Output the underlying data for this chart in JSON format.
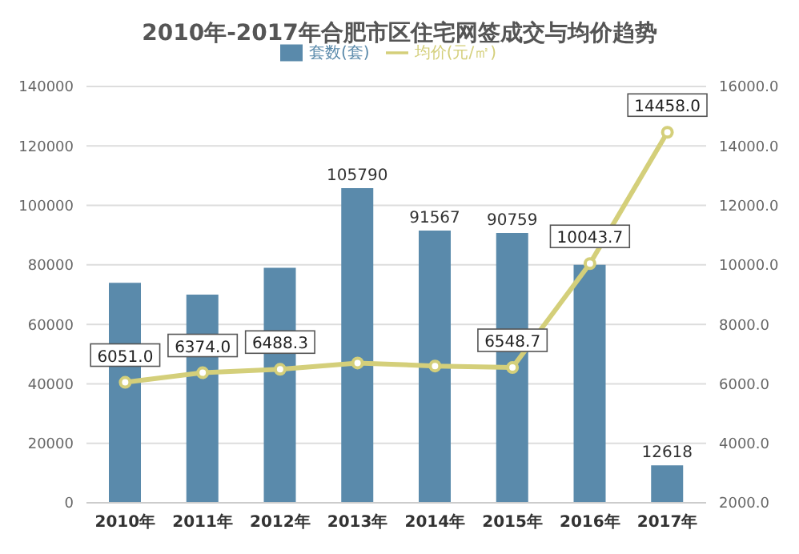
{
  "chart_data": {
    "type": "bar",
    "title": "2010年-2017年合肥市区住宅网签成交与均价趋势",
    "categories": [
      "2010年",
      "2011年",
      "2012年",
      "2013年",
      "2014年",
      "2015年",
      "2016年",
      "2017年"
    ],
    "series": [
      {
        "name": "套数(套)",
        "color": "#5a8aab",
        "values": [
          74000,
          70000,
          79000,
          105790,
          91567,
          90759,
          80000,
          12618
        ],
        "value_labels": [
          null,
          null,
          null,
          "105790",
          "91567",
          "90759",
          null,
          "12618"
        ]
      },
      {
        "name": "均价(元/㎡)",
        "type": "line",
        "axis": "y2",
        "color": "#d4cf7a",
        "marker": "circle",
        "values": [
          6051.0,
          6374.0,
          6488.3,
          6700,
          6600,
          6548.7,
          10043.7,
          14458.0
        ],
        "value_labels": [
          "6051.0",
          "6374.0",
          "6488.3",
          null,
          null,
          "6548.7",
          "10043.7",
          "14458.0"
        ]
      }
    ],
    "ylim": [
      0,
      140000
    ],
    "yticks": [
      0,
      20000,
      40000,
      60000,
      80000,
      100000,
      120000,
      140000
    ],
    "y2lim": [
      2000,
      16000
    ],
    "y2ticks": [
      {
        "value": 2000,
        "label": "2000.0"
      },
      {
        "value": 4000,
        "label": "4000.0"
      },
      {
        "value": 6000,
        "label": "6000.0"
      },
      {
        "value": 8000,
        "label": "8000.0"
      },
      {
        "value": 10000,
        "label": "10000.0"
      },
      {
        "value": 12000,
        "label": "12000.0"
      },
      {
        "value": 14000,
        "label": "14000.0"
      },
      {
        "value": 16000,
        "label": "16000.0"
      }
    ],
    "grid": "y",
    "legend": "top"
  }
}
